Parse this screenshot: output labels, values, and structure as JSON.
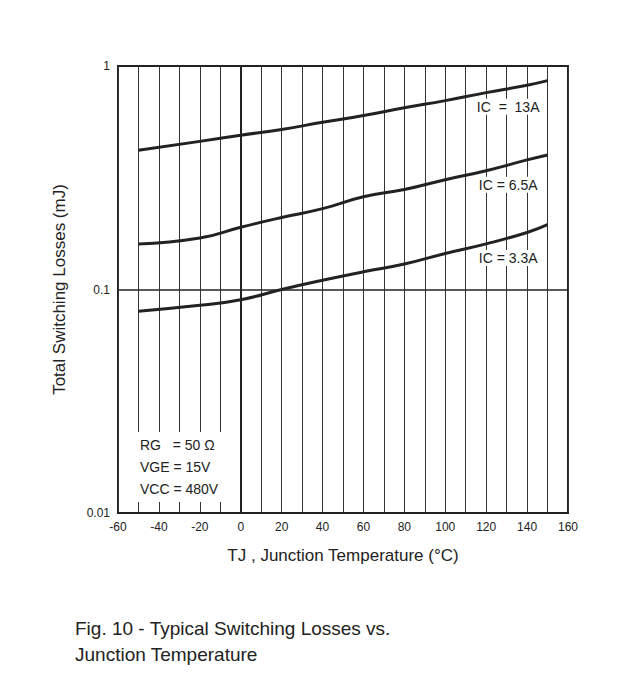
{
  "chart_data": {
    "type": "line",
    "title": "Fig. 10 - Typical Switching Losses vs.\nJunction Temperature",
    "x_label": "TJ , Junction Temperature (°C)",
    "y_label": "Total Switching Losses (mJ)",
    "annotations": [
      "RG   = 50 Ω",
      "VGE = 15V",
      "VCC = 480V"
    ],
    "x": [
      -50,
      -20,
      0,
      20,
      40,
      60,
      80,
      100,
      120,
      140,
      150
    ],
    "series": [
      {
        "name": "IC  =  13A",
        "color": "#222222",
        "values": [
          0.42,
          0.46,
          0.49,
          0.52,
          0.56,
          0.6,
          0.65,
          0.7,
          0.76,
          0.82,
          0.86
        ]
      },
      {
        "name": "IC = 6.5A",
        "color": "#222222",
        "values": [
          0.16,
          0.17,
          0.19,
          0.21,
          0.23,
          0.26,
          0.28,
          0.31,
          0.34,
          0.38,
          0.4
        ]
      },
      {
        "name": "IC = 3.3A",
        "color": "#222222",
        "values": [
          0.08,
          0.085,
          0.09,
          0.1,
          0.11,
          0.12,
          0.13,
          0.145,
          0.16,
          0.18,
          0.195
        ]
      }
    ],
    "xlim": [
      -60,
      160
    ],
    "xticks": [
      -60,
      -40,
      -20,
      0,
      20,
      40,
      60,
      80,
      100,
      120,
      140,
      160
    ],
    "ylim": [
      0.01,
      1
    ],
    "yticks": [
      0.01,
      0.1,
      1
    ],
    "log": "y",
    "grid": true
  }
}
